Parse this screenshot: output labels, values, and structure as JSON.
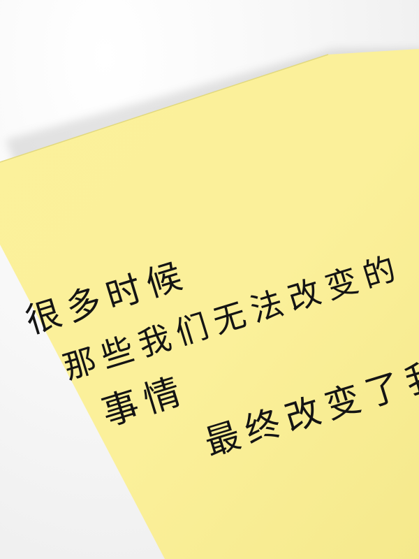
{
  "note": {
    "paper_color": "#fbf19a",
    "ink_color": "#141414",
    "lines": [
      "很多时候",
      "那些我们无法改变的",
      "事情",
      "最终改变了我们"
    ]
  }
}
